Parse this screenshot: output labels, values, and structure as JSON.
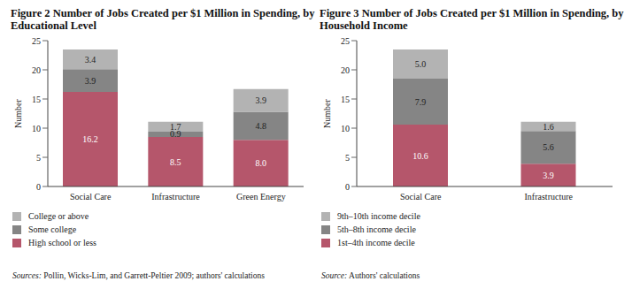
{
  "chart_data": [
    {
      "type": "bar",
      "stacked": true,
      "title": "Figure 2 Number of Jobs Created per $1 Million in Spending, by Educational Level",
      "y_label": "Number",
      "categories": [
        "Social Care",
        "Infrastructure",
        "Green Energy"
      ],
      "series": [
        {
          "name": "High school or less",
          "color": "#b5566b",
          "values": [
            16.2,
            8.5,
            8.0
          ],
          "value_labels": [
            "16.2",
            "8.5",
            "8.0"
          ]
        },
        {
          "name": "Some college",
          "color": "#858585",
          "values": [
            3.9,
            0.9,
            4.8
          ],
          "value_labels": [
            "3.9",
            "0.9",
            "4.8"
          ]
        },
        {
          "name": "College or above",
          "color": "#b3b3b3",
          "values": [
            3.4,
            1.7,
            3.9
          ],
          "value_labels": [
            "3.4",
            "1.7",
            "3.9"
          ]
        }
      ],
      "ylim": [
        0,
        25
      ],
      "yticks": [
        0,
        5,
        10,
        15,
        20,
        25
      ],
      "grid": false,
      "data_labels": true,
      "legend": "bottom",
      "source": "Sources: Pollin, Wicks-Lim, and Garrett-Peltier 2009; authors' calculations"
    },
    {
      "type": "bar",
      "stacked": true,
      "title": "Figure 3 Number of Jobs Created per $1 Million in Spending, by Household Income",
      "y_label": "Number",
      "categories": [
        "Social Care",
        "Infrastructure"
      ],
      "series": [
        {
          "name": "1st–4th income decile",
          "color": "#b5566b",
          "values": [
            10.6,
            3.9
          ],
          "value_labels": [
            "10.6",
            "3.9"
          ]
        },
        {
          "name": "5th–8th income decile",
          "color": "#858585",
          "values": [
            7.9,
            5.6
          ],
          "value_labels": [
            "7.9",
            "5.6"
          ]
        },
        {
          "name": "9th–10th income decile",
          "color": "#b3b3b3",
          "values": [
            5.0,
            1.6
          ],
          "value_labels": [
            "5.0",
            "1.6"
          ]
        }
      ],
      "ylim": [
        0,
        25
      ],
      "yticks": [
        0,
        5,
        10,
        15,
        20,
        25
      ],
      "grid": false,
      "data_labels": true,
      "legend": "bottom",
      "source": "Source: Authors' calculations"
    }
  ]
}
